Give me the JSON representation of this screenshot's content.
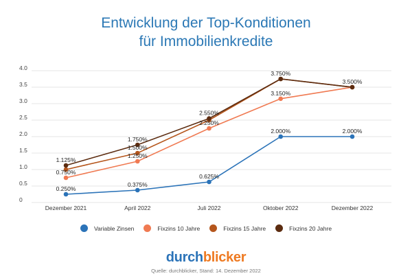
{
  "title_line1": "Entwicklung der Top-Konditionen",
  "title_line2": "für Immobilienkredite",
  "chart_data": {
    "type": "line",
    "title": "Entwicklung der Top-Konditionen für Immobilienkredite",
    "categories": [
      "Dezember 2021",
      "April 2022",
      "Juli 2022",
      "Oktober 2022",
      "Dezember 2022"
    ],
    "ylim": [
      0,
      4.0
    ],
    "yticks": [
      "0",
      "0.5",
      "1.0",
      "1.5",
      "2.0",
      "2.5",
      "3.0",
      "3.5",
      "4.0"
    ],
    "grid": true,
    "legend_placement": "bottom",
    "series": [
      {
        "name": "Variable Zinsen",
        "color": "#2b73b8",
        "values": [
          0.25,
          0.375,
          0.625,
          2.0,
          2.0
        ],
        "labels": [
          "0.250%",
          "0.375%",
          "0.625%",
          "2.000%",
          "2.000%"
        ]
      },
      {
        "name": "Fixzins 10 Jahre",
        "color": "#f07a52",
        "values": [
          0.75,
          1.25,
          2.25,
          3.15,
          3.5
        ],
        "labels": [
          "0.750%",
          "1.250%",
          "2.250%",
          "3.150%",
          ""
        ]
      },
      {
        "name": "Fixzins 15 Jahre",
        "color": "#b5561c",
        "values": [
          1.0,
          1.5,
          2.5,
          3.75,
          3.5
        ],
        "labels": [
          "",
          "1.500%",
          "",
          "",
          ""
        ]
      },
      {
        "name": "Fixzins 20 Jahre",
        "color": "#5c2c10",
        "values": [
          1.125,
          1.75,
          2.55,
          3.75,
          3.5
        ],
        "labels": [
          "1.125%",
          "1.750%",
          "2.550%",
          "3.750%",
          "3.500%"
        ]
      }
    ]
  },
  "logo": {
    "part1": "durch",
    "part2": "blicker",
    "color1": "#2b73b8",
    "color2": "#ee7a22"
  },
  "source": "Quelle: durchblicker, Stand: 14. Dezember 2022"
}
